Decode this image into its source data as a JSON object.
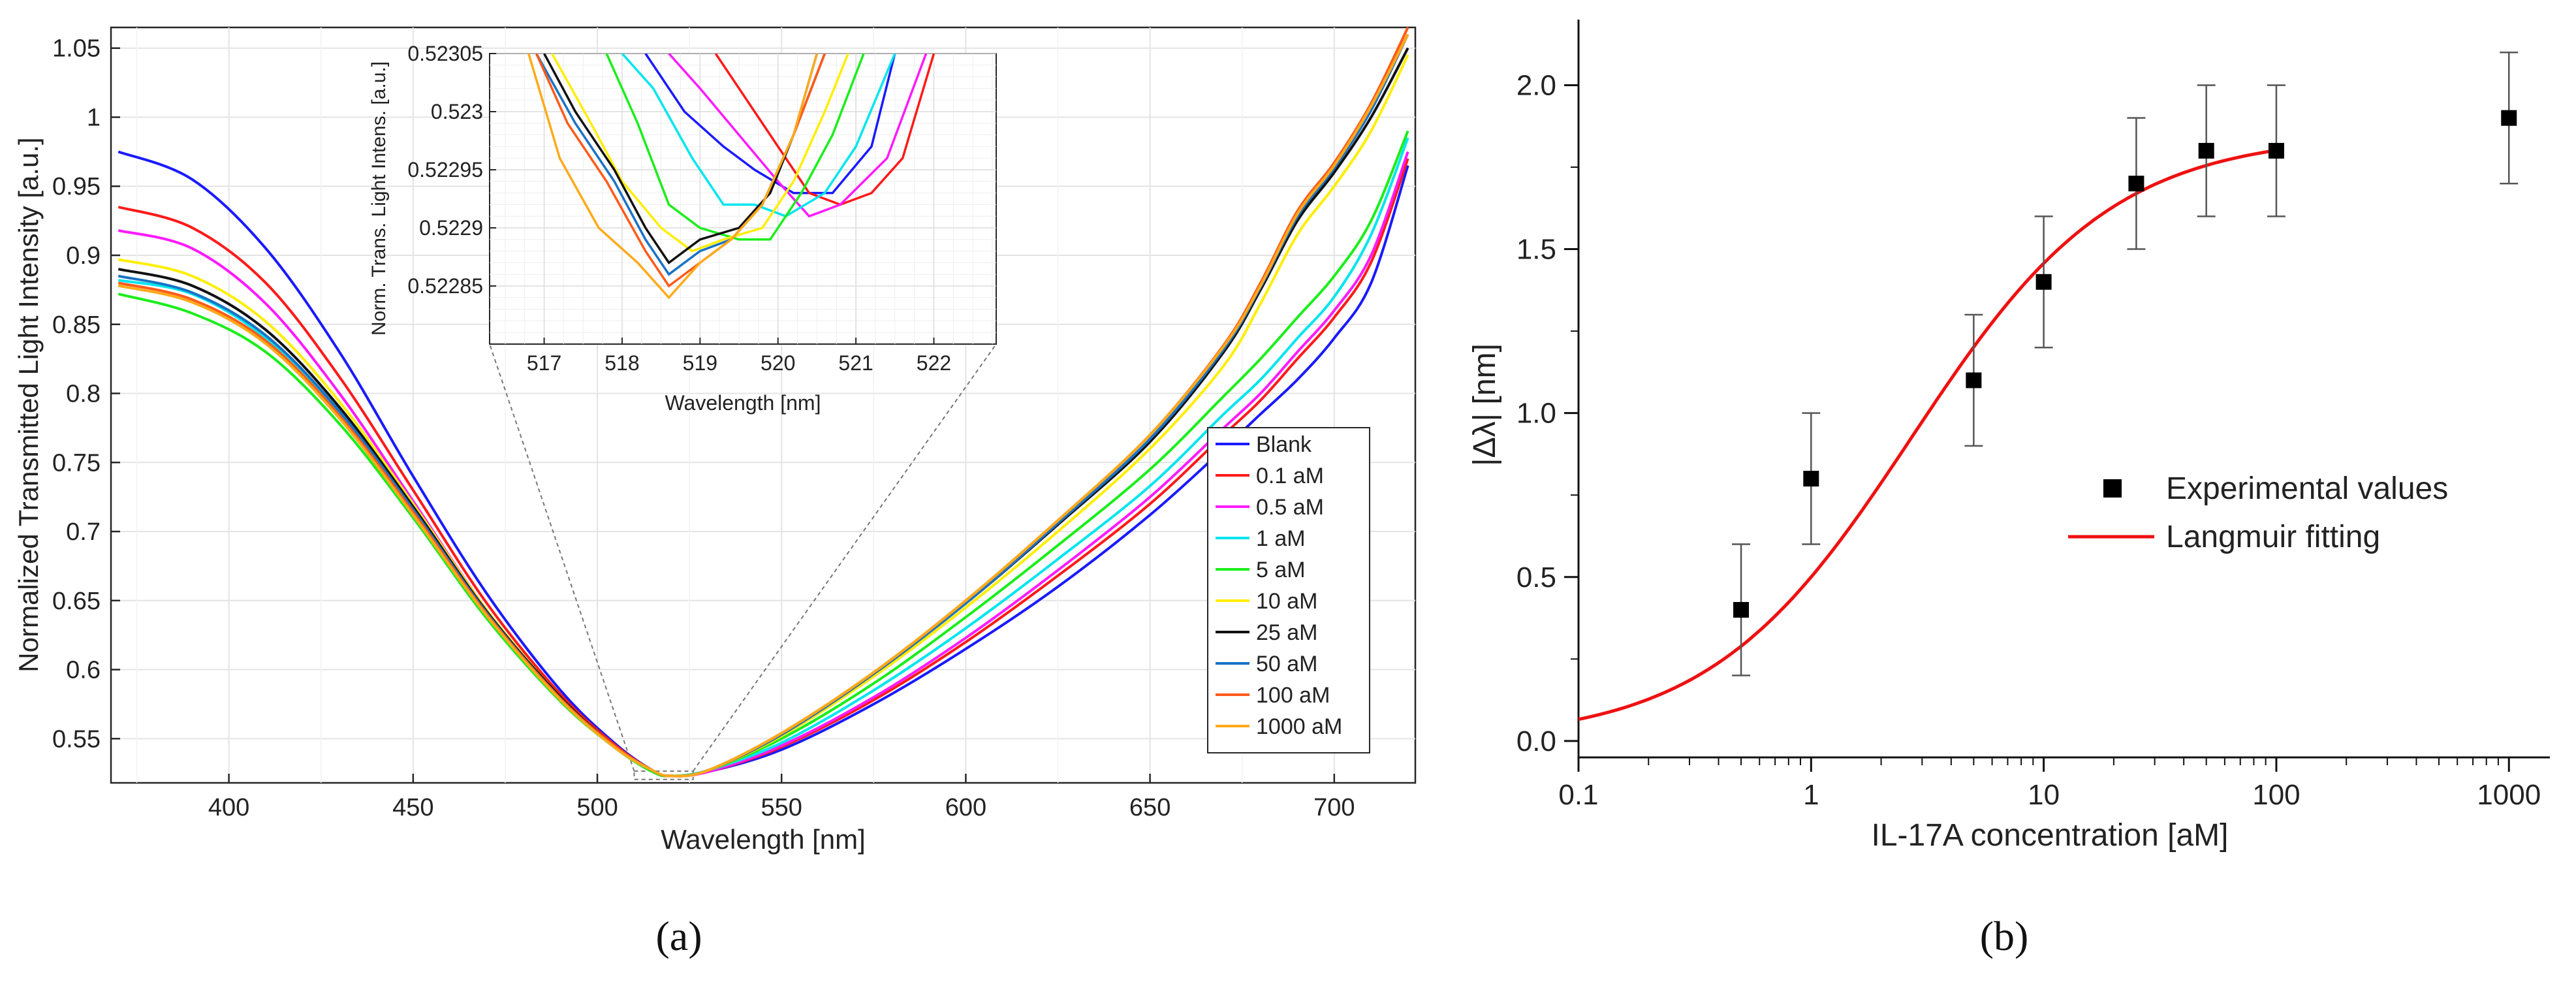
{
  "chart_data": [
    {
      "type": "line",
      "panel_label": "(a)",
      "xlabel": "Wavelength [nm]",
      "ylabel": "Normalized Transmitted Light Intensity [a.u.]",
      "xlim": [
        368,
        722
      ],
      "ylim": [
        0.518,
        1.065
      ],
      "xticks": [
        400,
        450,
        500,
        550,
        600,
        650,
        700
      ],
      "yticks": [
        0.55,
        0.6,
        0.65,
        0.7,
        0.75,
        0.8,
        0.85,
        0.9,
        0.95,
        1,
        1.05
      ],
      "ytick_labels": [
        "0.55",
        "0.6",
        "0.65",
        "0.7",
        "0.75",
        "0.8",
        "0.85",
        "0.9",
        "0.95",
        "1",
        "1.05"
      ],
      "grid": true,
      "legend_position": "right",
      "x": [
        370,
        390,
        410,
        430,
        450,
        470,
        490,
        505,
        515,
        520,
        530,
        550,
        575,
        600,
        625,
        650,
        670,
        680,
        690,
        700,
        710,
        720
      ],
      "series": [
        {
          "name": "Blank",
          "color": "#1a1aff",
          "values": [
            0.975,
            0.955,
            0.905,
            0.83,
            0.74,
            0.655,
            0.585,
            0.546,
            0.527,
            0.523,
            0.526,
            0.542,
            0.575,
            0.615,
            0.66,
            0.712,
            0.76,
            0.785,
            0.81,
            0.84,
            0.88,
            0.965
          ]
        },
        {
          "name": "0.1 aM",
          "color": "#ff1a1a",
          "values": [
            0.935,
            0.92,
            0.88,
            0.812,
            0.73,
            0.648,
            0.582,
            0.545,
            0.527,
            0.523,
            0.526,
            0.544,
            0.578,
            0.62,
            0.668,
            0.72,
            0.77,
            0.795,
            0.825,
            0.855,
            0.895,
            0.97
          ]
        },
        {
          "name": "0.5 aM",
          "color": "#ff1aff",
          "values": [
            0.918,
            0.905,
            0.865,
            0.8,
            0.722,
            0.643,
            0.58,
            0.544,
            0.527,
            0.523,
            0.526,
            0.545,
            0.58,
            0.623,
            0.672,
            0.725,
            0.775,
            0.8,
            0.83,
            0.86,
            0.9,
            0.975
          ]
        },
        {
          "name": "1 aM",
          "color": "#00e5ee",
          "values": [
            0.882,
            0.872,
            0.84,
            0.786,
            0.715,
            0.64,
            0.578,
            0.543,
            0.526,
            0.523,
            0.527,
            0.547,
            0.585,
            0.63,
            0.68,
            0.733,
            0.785,
            0.81,
            0.84,
            0.87,
            0.915,
            0.985
          ]
        },
        {
          "name": "5 aM",
          "color": "#1aee1a",
          "values": [
            0.872,
            0.858,
            0.83,
            0.778,
            0.71,
            0.637,
            0.577,
            0.543,
            0.526,
            0.523,
            0.527,
            0.55,
            0.59,
            0.638,
            0.69,
            0.745,
            0.798,
            0.825,
            0.855,
            0.885,
            0.925,
            0.99
          ]
        },
        {
          "name": "10 aM",
          "color": "#ffee00",
          "values": [
            0.897,
            0.885,
            0.852,
            0.794,
            0.72,
            0.643,
            0.58,
            0.544,
            0.527,
            0.523,
            0.527,
            0.552,
            0.595,
            0.645,
            0.7,
            0.76,
            0.82,
            0.865,
            0.915,
            0.95,
            0.99,
            1.045
          ]
        },
        {
          "name": "25 aM",
          "color": "#111111",
          "values": [
            0.89,
            0.878,
            0.846,
            0.79,
            0.718,
            0.642,
            0.58,
            0.544,
            0.527,
            0.523,
            0.527,
            0.553,
            0.597,
            0.648,
            0.705,
            0.765,
            0.83,
            0.875,
            0.925,
            0.96,
            1.0,
            1.05
          ]
        },
        {
          "name": "50 aM",
          "color": "#1a73c4",
          "values": [
            0.885,
            0.873,
            0.842,
            0.787,
            0.716,
            0.641,
            0.579,
            0.544,
            0.527,
            0.523,
            0.527,
            0.553,
            0.597,
            0.648,
            0.706,
            0.767,
            0.832,
            0.877,
            0.928,
            0.963,
            1.005,
            1.06
          ]
        },
        {
          "name": "100 aM",
          "color": "#ff5a1a",
          "values": [
            0.88,
            0.868,
            0.838,
            0.784,
            0.714,
            0.64,
            0.579,
            0.544,
            0.527,
            0.523,
            0.527,
            0.554,
            0.598,
            0.65,
            0.708,
            0.77,
            0.835,
            0.88,
            0.932,
            0.967,
            1.01,
            1.065
          ]
        },
        {
          "name": "1000 aM",
          "color": "#ffaa1a",
          "values": [
            0.878,
            0.866,
            0.836,
            0.782,
            0.712,
            0.639,
            0.578,
            0.543,
            0.527,
            0.523,
            0.527,
            0.554,
            0.598,
            0.65,
            0.708,
            0.77,
            0.834,
            0.878,
            0.93,
            0.965,
            1.008,
            1.06
          ]
        }
      ],
      "inset": {
        "xlabel": "Wavelength [nm]",
        "ylabel": "Norm. Trans. Light Intens. [a.u.]",
        "xlim": [
          516.3,
          522.8
        ],
        "ylim": [
          0.5228,
          0.52305
        ],
        "xticks": [
          517,
          518,
          519,
          520,
          521,
          522
        ],
        "yticks": [
          0.52285,
          0.5229,
          0.52295,
          0.523,
          0.52305
        ],
        "ytick_labels": [
          "0.52285",
          "0.5229",
          "0.52295",
          "0.523",
          "0.52305"
        ],
        "zoom_region": [
          510,
          526,
          0.5205,
          0.5265
        ],
        "series": [
          {
            "name": "Blank",
            "x": [
              518.3,
              518.8,
              519.3,
              519.7,
              520.2,
              520.7,
              521.2,
              521.5
            ],
            "values": [
              0.52305,
              0.523,
              0.52297,
              0.52295,
              0.52293,
              0.52293,
              0.52297,
              0.52305
            ]
          },
          {
            "name": "0.1 aM",
            "x": [
              519.2,
              519.6,
              520.0,
              520.4,
              520.8,
              521.2,
              521.6,
              522.0
            ],
            "values": [
              0.52305,
              0.52301,
              0.52297,
              0.52293,
              0.52292,
              0.52293,
              0.52296,
              0.52305
            ]
          },
          {
            "name": "0.5 aM",
            "x": [
              518.6,
              519.0,
              519.5,
              520.0,
              520.4,
              520.8,
              521.4,
              521.9
            ],
            "values": [
              0.52305,
              0.52302,
              0.52298,
              0.52294,
              0.52291,
              0.52292,
              0.52296,
              0.52305
            ]
          },
          {
            "name": "1 aM",
            "x": [
              518.0,
              518.4,
              518.9,
              519.3,
              519.7,
              520.1,
              520.6,
              521.0,
              521.5
            ],
            "values": [
              0.52305,
              0.52302,
              0.52296,
              0.52292,
              0.52292,
              0.52291,
              0.52293,
              0.52297,
              0.52305
            ]
          },
          {
            "name": "5 aM",
            "x": [
              517.8,
              518.2,
              518.6,
              519.0,
              519.5,
              519.9,
              520.3,
              520.7,
              521.1
            ],
            "values": [
              0.52305,
              0.52299,
              0.52292,
              0.5229,
              0.52289,
              0.52289,
              0.52293,
              0.52298,
              0.52305
            ]
          },
          {
            "name": "10 aM",
            "x": [
              517.1,
              517.6,
              518.0,
              518.5,
              518.9,
              519.3,
              519.8,
              520.2,
              520.6,
              520.9
            ],
            "values": [
              0.52305,
              0.52299,
              0.52294,
              0.5229,
              0.52288,
              0.52289,
              0.5229,
              0.52294,
              0.523,
              0.52305
            ]
          },
          {
            "name": "25 aM",
            "x": [
              517.0,
              517.4,
              517.9,
              518.3,
              518.6,
              519.0,
              519.5,
              519.9,
              520.2,
              520.6
            ],
            "values": [
              0.52305,
              0.523,
              0.52295,
              0.5229,
              0.52287,
              0.52289,
              0.5229,
              0.52293,
              0.52298,
              0.52305
            ]
          },
          {
            "name": "50 aM",
            "x": [
              516.9,
              517.4,
              517.9,
              518.3,
              518.6,
              519.0,
              519.4,
              519.8,
              520.2,
              520.5
            ],
            "values": [
              0.52305,
              0.52299,
              0.52294,
              0.52289,
              0.52286,
              0.52288,
              0.52289,
              0.52292,
              0.52298,
              0.52305
            ]
          },
          {
            "name": "100 aM",
            "x": [
              516.9,
              517.3,
              517.8,
              518.3,
              518.6,
              519.0,
              519.4,
              519.8,
              520.2,
              520.6
            ],
            "values": [
              0.52305,
              0.52299,
              0.52294,
              0.52288,
              0.52285,
              0.52287,
              0.52289,
              0.52292,
              0.52298,
              0.52305
            ]
          },
          {
            "name": "1000 aM",
            "x": [
              516.8,
              517.2,
              517.7,
              518.2,
              518.6,
              519.0,
              519.4,
              519.8,
              520.2,
              520.5
            ],
            "values": [
              0.52305,
              0.52296,
              0.5229,
              0.52287,
              0.52284,
              0.52287,
              0.52289,
              0.52292,
              0.52298,
              0.52305
            ]
          }
        ]
      }
    },
    {
      "type": "scatter",
      "panel_label": "(b)",
      "xlabel": "IL-17A concentration [aM]",
      "ylabel": "|Δλ| [nm]",
      "xscale": "log",
      "xlim": [
        0.1,
        1500
      ],
      "ylim": [
        -0.05,
        2.2
      ],
      "xticks": [
        0.1,
        1,
        10,
        100,
        1000
      ],
      "xtick_labels": [
        "0.1",
        "1",
        "10",
        "100",
        "1000"
      ],
      "yticks": [
        0.0,
        0.5,
        1.0,
        1.5,
        2.0
      ],
      "ytick_labels": [
        "0.0",
        "0.5",
        "1.0",
        "1.5",
        "2.0"
      ],
      "legend_position": "center-right",
      "series": [
        {
          "name": "Experimental values",
          "kind": "scatter",
          "color": "#000000",
          "x": [
            0.5,
            1,
            5,
            10,
            25,
            50,
            100,
            1000
          ],
          "values": [
            0.4,
            0.8,
            1.1,
            1.4,
            1.7,
            1.8,
            1.8,
            1.9
          ],
          "error": [
            0.2,
            0.2,
            0.2,
            0.2,
            0.2,
            0.2,
            0.2,
            0.2
          ]
        },
        {
          "name": "Langmuir fitting",
          "kind": "line",
          "color": "#ee1111",
          "model": "y = 1.85 * x / (2.7 + x)"
        }
      ]
    }
  ]
}
